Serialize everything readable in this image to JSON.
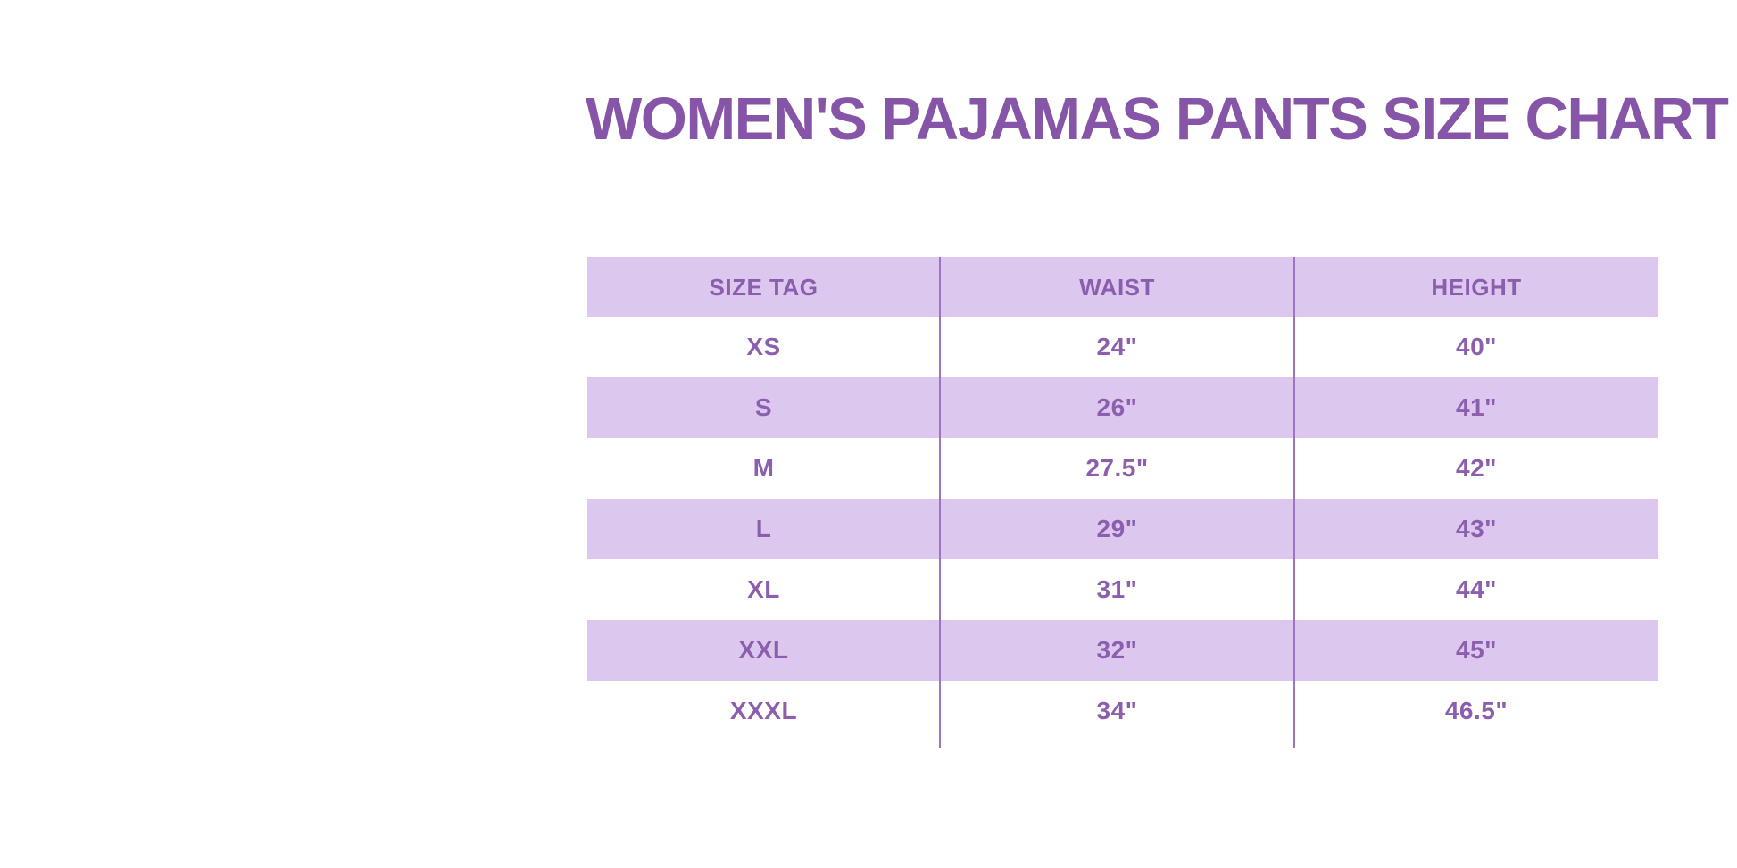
{
  "page": {
    "background_color": "#ffffff"
  },
  "title": {
    "text": "WOMEN'S PAJAMAS PANTS SIZE CHART",
    "color": "#8655a8"
  },
  "table": {
    "columns": [
      "SIZE TAG",
      "WAIST",
      "HEIGHT"
    ],
    "rows": [
      [
        "XS",
        "24\"",
        "40\""
      ],
      [
        "S",
        "26\"",
        "41\""
      ],
      [
        "M",
        "27.5\"",
        "42\""
      ],
      [
        "L",
        "29\"",
        "43\""
      ],
      [
        "XL",
        "31\"",
        "44\""
      ],
      [
        "XXL",
        "32\"",
        "45\""
      ],
      [
        "XXXL",
        "34\"",
        "46.5\""
      ]
    ],
    "colors": {
      "band_row_background": "#dcc7ef",
      "text": "#8b5fae",
      "divider": "#9d74bd"
    }
  }
}
